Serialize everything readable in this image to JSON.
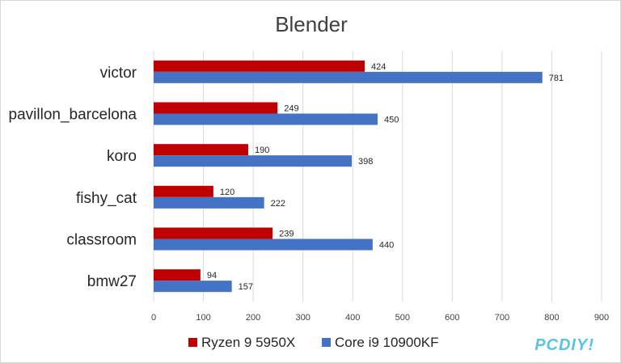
{
  "chart_data": {
    "type": "bar",
    "orientation": "horizontal",
    "title": "Blender",
    "categories": [
      "victor",
      "pavillon_barcelona",
      "koro",
      "fishy_cat",
      "classroom",
      "bmw27"
    ],
    "series": [
      {
        "name": "Ryzen 9 5950X",
        "color": "#c00000",
        "values": [
          424,
          249,
          190,
          120,
          239,
          94
        ]
      },
      {
        "name": "Core i9 10900KF",
        "color": "#4472c4",
        "values": [
          781,
          450,
          398,
          222,
          440,
          157
        ]
      }
    ],
    "xlim": [
      0,
      900
    ],
    "xticks": [
      "0",
      "100",
      "200",
      "300",
      "400",
      "500",
      "600",
      "700",
      "800",
      "900"
    ],
    "grid": true,
    "legend": "bottom",
    "xlabel": "",
    "ylabel": ""
  },
  "watermark": "PCDIY!",
  "colors": {
    "gridline": "#d9d9d9",
    "watermark": "#5bc2e7"
  }
}
